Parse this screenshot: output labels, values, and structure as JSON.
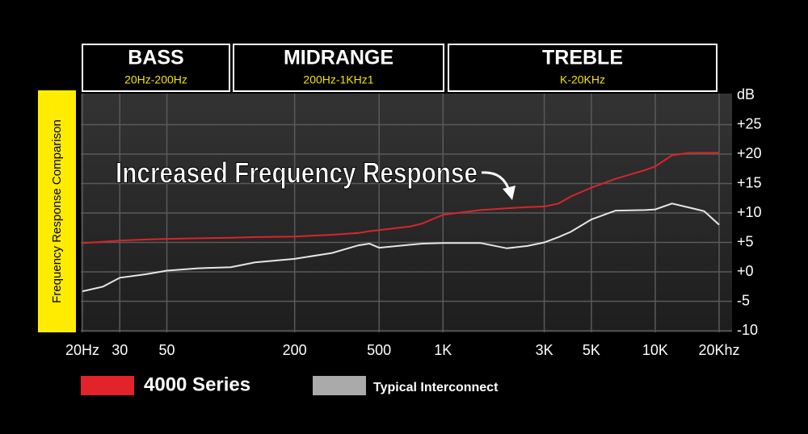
{
  "chart_data": {
    "type": "line",
    "y_label": "Frequency Response Comparison",
    "unit_label": "dB",
    "annotation": "Increased Frequency Response",
    "bands": [
      {
        "name": "BASS",
        "range": "20Hz-200Hz"
      },
      {
        "name": "MIDRANGE",
        "range": "200Hz-1KHz1"
      },
      {
        "name": "TREBLE",
        "range": "K-20KHz"
      }
    ],
    "xscale": "log",
    "x": [
      20,
      25,
      30,
      40,
      50,
      70,
      100,
      130,
      200,
      300,
      400,
      450,
      500,
      700,
      800,
      1000,
      1500,
      2000,
      2500,
      3000,
      3500,
      4000,
      5000,
      6500,
      9000,
      10000,
      12000,
      14500,
      17000,
      20000
    ],
    "series": [
      {
        "name": "4000 Series",
        "color": "#d9252a",
        "values": [
          4.9,
          5.1,
          5.3,
          5.5,
          5.6,
          5.7,
          5.8,
          5.9,
          6.0,
          6.3,
          6.6,
          6.9,
          7.1,
          7.7,
          8.2,
          9.7,
          10.5,
          10.8,
          11.0,
          11.1,
          11.6,
          12.8,
          14.3,
          15.8,
          17.3,
          17.9,
          19.8,
          20.2,
          20.2,
          20.2
        ]
      },
      {
        "name": "Typical Interconnect",
        "color": "#e6e6e6",
        "values": [
          -3.3,
          -2.5,
          -1.0,
          -0.4,
          0.2,
          0.6,
          0.8,
          1.6,
          2.2,
          3.2,
          4.5,
          4.8,
          4.1,
          4.6,
          4.8,
          4.9,
          4.9,
          4.0,
          4.4,
          5.0,
          5.9,
          6.8,
          8.9,
          10.4,
          10.5,
          10.6,
          11.6,
          10.9,
          10.3,
          8.0
        ]
      }
    ],
    "legend_swatch_colors": [
      "#e3232a",
      "#aaaaaa"
    ],
    "xlim": [
      20,
      20000
    ],
    "xticks": [
      {
        "value": 20,
        "label": "20Hz"
      },
      30,
      50,
      200,
      500,
      {
        "value": 1000,
        "label": "1K"
      },
      {
        "value": 3000,
        "label": "3K"
      },
      {
        "value": 5000,
        "label": "5K"
      },
      {
        "value": 10000,
        "label": "10K"
      },
      {
        "value": 20000,
        "label": "20Khz"
      }
    ],
    "ylim": [
      -10,
      30
    ],
    "yticks": [
      {
        "value": 25,
        "label": "+25"
      },
      {
        "value": 20,
        "label": "+20"
      },
      {
        "value": 15,
        "label": "+15"
      },
      {
        "value": 10,
        "label": "+10"
      },
      {
        "value": 5,
        "label": "+5"
      },
      {
        "value": 0,
        "label": "+0"
      },
      -5,
      -10
    ],
    "grid": true
  }
}
